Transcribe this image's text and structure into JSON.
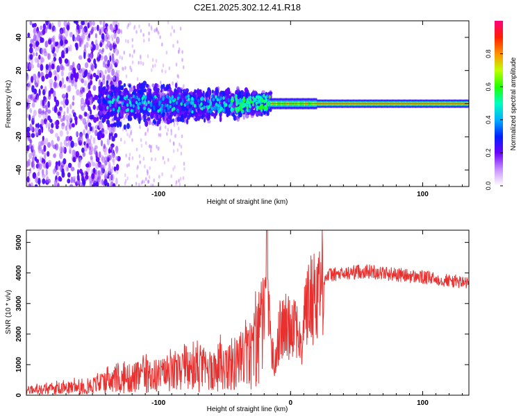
{
  "title": "C2E1.2025.302.12.41.R18",
  "colors": {
    "top_low": "#8a2be2",
    "line": "#e8302f",
    "frame": "#000000"
  },
  "chart_data": [
    {
      "type": "heatmap",
      "title": "",
      "xlabel": "Height of straight line (km)",
      "ylabel": "Frequency (Hz)",
      "xlim": [
        -200,
        135
      ],
      "ylim": [
        -50,
        50
      ],
      "xticks": [
        -100,
        0,
        100
      ],
      "xtick_labels": [
        "-100",
        "",
        "100"
      ],
      "yticks": [
        -40,
        -20,
        0,
        20,
        40
      ],
      "ytick_labels": [
        "-40",
        "-20",
        "0",
        "20",
        "40"
      ],
      "colorbar": {
        "label": "Normalized spectral amplitude",
        "range": [
          0,
          1
        ],
        "ticks": [
          0.0,
          0.2,
          0.4,
          0.6,
          0.8
        ],
        "tick_labels": [
          "0.0",
          "0.2",
          "0.4",
          "0.6",
          "0.8"
        ],
        "colormap": "rainbow (white-violet-blue-cyan-green-yellow-red-magenta)"
      },
      "description_regions": [
        {
          "x_range": [
            -200,
            -140
          ],
          "freq_range": [
            -50,
            50
          ],
          "amplitude": 0.15
        },
        {
          "x_range": [
            -145,
            -15
          ],
          "freq_range": [
            -15,
            15
          ],
          "amplitude": 0.3
        },
        {
          "x_range": [
            -15,
            20
          ],
          "freq_range": [
            -3,
            3
          ],
          "amplitude": 0.7
        },
        {
          "x_range": [
            20,
            135
          ],
          "freq_range": [
            -1,
            1
          ],
          "amplitude": 0.9
        }
      ]
    },
    {
      "type": "line",
      "title": "",
      "xlabel": "Height of straight line (km)",
      "ylabel": "SNR (10 * v/v)",
      "xlim": [
        -200,
        135
      ],
      "ylim": [
        0,
        5400
      ],
      "xticks": [
        -100,
        0,
        100
      ],
      "xtick_labels": [
        "-100",
        "0",
        "100"
      ],
      "yticks": [
        0,
        1000,
        2000,
        3000,
        4000,
        5000
      ],
      "ytick_labels": [
        "0",
        "1000",
        "2000",
        "3000",
        "4000",
        "5000"
      ],
      "series": [
        {
          "name": "SNR",
          "color": "#e8302f",
          "x": [
            -200,
            -180,
            -160,
            -150,
            -140,
            -130,
            -120,
            -110,
            -100,
            -90,
            -80,
            -70,
            -60,
            -50,
            -40,
            -30,
            -25,
            -20,
            -18,
            -16,
            -14,
            -12,
            -10,
            -8,
            -5,
            0,
            3,
            6,
            8,
            10,
            15,
            20,
            25,
            30,
            40,
            50,
            60,
            70,
            80,
            90,
            100,
            110,
            120,
            130,
            135
          ],
          "y": [
            150,
            200,
            260,
            320,
            400,
            480,
            560,
            620,
            640,
            700,
            760,
            800,
            850,
            950,
            1050,
            1350,
            1700,
            2200,
            5300,
            2600,
            1400,
            900,
            1800,
            2100,
            2200,
            2300,
            2600,
            2100,
            1300,
            2700,
            3100,
            3500,
            3800,
            3950,
            3950,
            4050,
            4050,
            4000,
            3950,
            3900,
            3850,
            3800,
            3750,
            3700,
            3650
          ]
        }
      ]
    }
  ]
}
